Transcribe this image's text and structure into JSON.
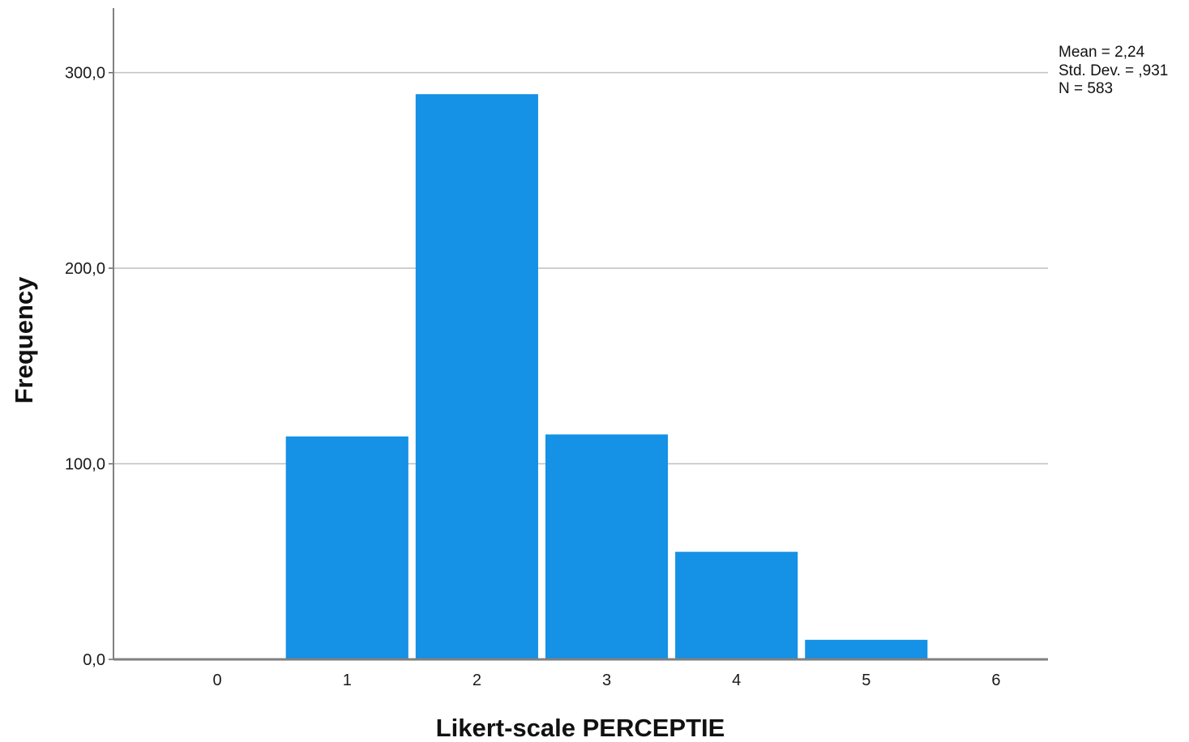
{
  "chart_data": {
    "type": "bar",
    "title": "",
    "xlabel": "Likert-scale PERCEPTIE",
    "ylabel": "Frequency",
    "x_ticks": [
      "0",
      "1",
      "2",
      "3",
      "4",
      "5",
      "6"
    ],
    "y_ticks": [
      "0,0",
      "100,0",
      "200,0",
      "300,0"
    ],
    "xlim": [
      -0.8,
      6.4
    ],
    "ylim": [
      0,
      333
    ],
    "bars": [
      {
        "x": 1,
        "value": 114
      },
      {
        "x": 2,
        "value": 289
      },
      {
        "x": 3,
        "value": 115
      },
      {
        "x": 4,
        "value": 55
      },
      {
        "x": 5,
        "value": 10
      }
    ],
    "bar_color": "#1591e5",
    "grid": true,
    "stats": {
      "mean": "Mean = 2,24",
      "std_dev": "Std. Dev. = ,931",
      "n": "N = 583"
    },
    "legend_position": "top-right"
  }
}
